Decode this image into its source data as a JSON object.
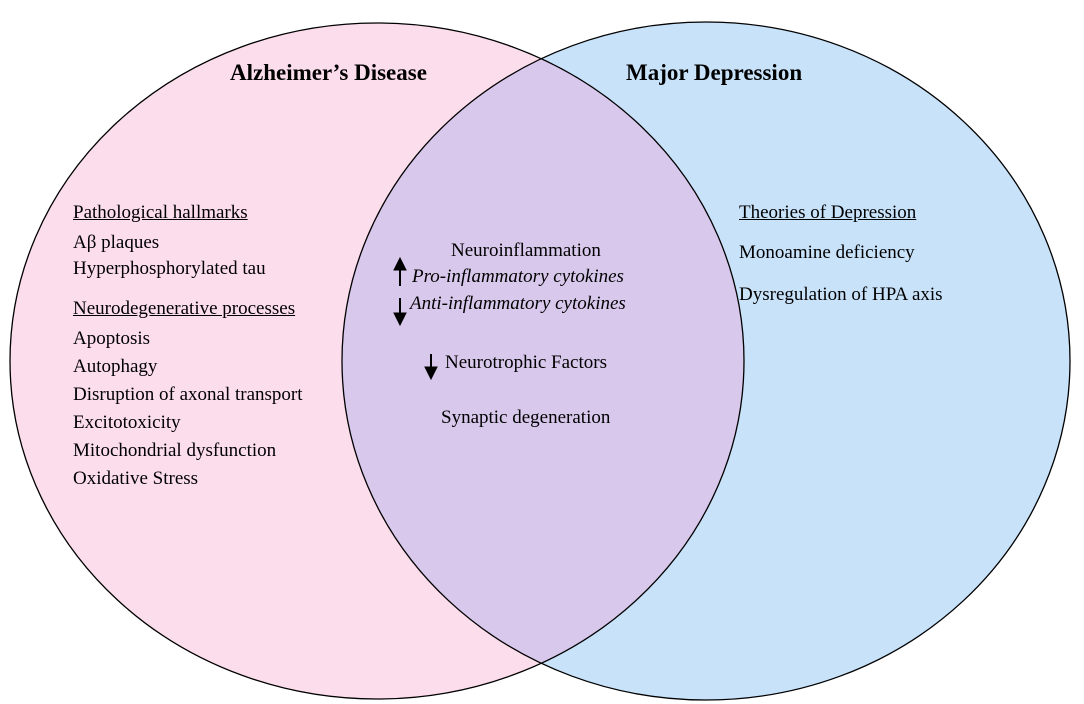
{
  "diagram": {
    "left_set": {
      "title": "Alzheimer’s Disease",
      "fill": "#FCDDEC",
      "sections": [
        {
          "heading": "Pathological hallmarks",
          "items": [
            "Aβ plaques",
            "Hyperphosphorylated tau"
          ]
        },
        {
          "heading": "Neurodegenerative processes",
          "items": [
            "Apoptosis",
            "Autophagy",
            "Disruption of axonal transport",
            "Excitotoxicity",
            "Mitochondrial dysfunction",
            "Oxidative Stress"
          ]
        }
      ]
    },
    "right_set": {
      "title": "Major Depression",
      "fill": "#C8E2FA",
      "sections": [
        {
          "heading": "Theories of Depression",
          "items": [
            "Monoamine deficiency",
            "Dysregulation of HPA axis"
          ]
        }
      ]
    },
    "overlap": {
      "fill": "#D8C8EC",
      "items": [
        {
          "text": "Neuroinflammation",
          "arrow": "none",
          "italic": false
        },
        {
          "text": "Pro-inflammatory cytokines",
          "arrow": "up",
          "italic": true
        },
        {
          "text": "Anti-inflammatory cytokines",
          "arrow": "down",
          "italic": true
        },
        {
          "text": "Neurotrophic Factors",
          "arrow": "down",
          "italic": false
        },
        {
          "text": "Synaptic degeneration",
          "arrow": "none",
          "italic": false
        }
      ]
    },
    "outline_color": "#000000"
  }
}
